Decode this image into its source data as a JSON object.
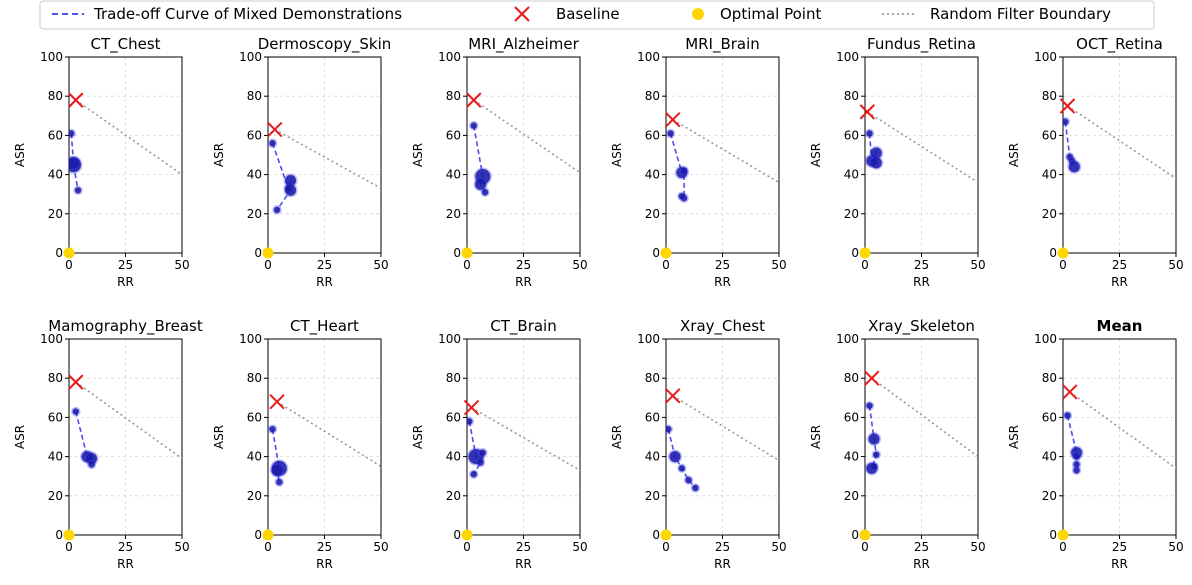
{
  "legend": {
    "curve_label": "Trade-off Curve of Mixed Demonstrations",
    "baseline_label": "Baseline",
    "optimal_label": "Optimal Point",
    "random_label": "Random Filter Boundary"
  },
  "colors": {
    "curve": "#3a3aee",
    "baseline": "#e8191b",
    "optimal": "#ffd700",
    "random": "#999999",
    "grid": "#d8d8d8"
  },
  "chart_data": [
    {
      "type": "scatter",
      "title": "CT_Chest",
      "bold": false,
      "xlabel": "RR",
      "ylabel": "ASR",
      "xlim": [
        0,
        50
      ],
      "ylim": [
        0,
        100
      ],
      "xticks": [
        0,
        25,
        50
      ],
      "yticks": [
        0,
        20,
        40,
        60,
        80,
        100
      ],
      "grid": true,
      "baseline": [
        3,
        78
      ],
      "optimal": [
        0,
        0
      ],
      "random_boundary": [
        [
          3,
          78
        ],
        [
          50,
          40
        ]
      ],
      "trade_off": [
        [
          1,
          61,
          1
        ],
        [
          2,
          46,
          2
        ],
        [
          2,
          45,
          3
        ],
        [
          4,
          32,
          1
        ]
      ]
    },
    {
      "type": "scatter",
      "title": "Dermoscopy_Skin",
      "bold": false,
      "xlabel": "RR",
      "ylabel": "ASR",
      "xlim": [
        0,
        50
      ],
      "ylim": [
        0,
        100
      ],
      "xticks": [
        0,
        25,
        50
      ],
      "yticks": [
        0,
        20,
        40,
        60,
        80,
        100
      ],
      "grid": true,
      "baseline": [
        3,
        63
      ],
      "optimal": [
        0,
        0
      ],
      "random_boundary": [
        [
          3,
          63
        ],
        [
          50,
          33
        ]
      ],
      "trade_off": [
        [
          2,
          56,
          1
        ],
        [
          9,
          33,
          1
        ],
        [
          10,
          37,
          2
        ],
        [
          10,
          32,
          2
        ],
        [
          4,
          22,
          1
        ]
      ]
    },
    {
      "type": "scatter",
      "title": "MRI_Alzheimer",
      "bold": false,
      "xlabel": "RR",
      "ylabel": "ASR",
      "xlim": [
        0,
        50
      ],
      "ylim": [
        0,
        100
      ],
      "xticks": [
        0,
        25,
        50
      ],
      "yticks": [
        0,
        20,
        40,
        60,
        80,
        100
      ],
      "grid": true,
      "baseline": [
        3,
        78
      ],
      "optimal": [
        0,
        0
      ],
      "random_boundary": [
        [
          3,
          78
        ],
        [
          50,
          41
        ]
      ],
      "trade_off": [
        [
          3,
          65,
          1
        ],
        [
          7,
          39,
          3
        ],
        [
          6,
          35,
          2
        ],
        [
          8,
          31,
          1
        ]
      ]
    },
    {
      "type": "scatter",
      "title": "MRI_Brain",
      "bold": false,
      "xlabel": "RR",
      "ylabel": "ASR",
      "xlim": [
        0,
        50
      ],
      "ylim": [
        0,
        100
      ],
      "xticks": [
        0,
        25,
        50
      ],
      "yticks": [
        0,
        20,
        40,
        60,
        80,
        100
      ],
      "grid": true,
      "baseline": [
        3,
        68
      ],
      "optimal": [
        0,
        0
      ],
      "random_boundary": [
        [
          3,
          68
        ],
        [
          50,
          36
        ]
      ],
      "trade_off": [
        [
          2,
          61,
          1
        ],
        [
          7,
          41,
          2
        ],
        [
          8,
          42,
          1
        ],
        [
          8,
          28,
          1
        ],
        [
          7,
          29,
          1
        ]
      ]
    },
    {
      "type": "scatter",
      "title": "Fundus_Retina",
      "bold": false,
      "xlabel": "RR",
      "ylabel": "ASR",
      "xlim": [
        0,
        50
      ],
      "ylim": [
        0,
        100
      ],
      "xticks": [
        0,
        25,
        50
      ],
      "yticks": [
        0,
        20,
        40,
        60,
        80,
        100
      ],
      "grid": true,
      "baseline": [
        1,
        72
      ],
      "optimal": [
        0,
        0
      ],
      "random_boundary": [
        [
          1,
          72
        ],
        [
          50,
          36
        ]
      ],
      "trade_off": [
        [
          2,
          61,
          1
        ],
        [
          3,
          47,
          2
        ],
        [
          5,
          51,
          2
        ],
        [
          5,
          46,
          2
        ]
      ]
    },
    {
      "type": "scatter",
      "title": "OCT_Retina",
      "bold": false,
      "xlabel": "RR",
      "ylabel": "ASR",
      "xlim": [
        0,
        50
      ],
      "ylim": [
        0,
        100
      ],
      "xticks": [
        0,
        25,
        50
      ],
      "yticks": [
        0,
        20,
        40,
        60,
        80,
        100
      ],
      "grid": true,
      "baseline": [
        2,
        75
      ],
      "optimal": [
        0,
        0
      ],
      "random_boundary": [
        [
          2,
          75
        ],
        [
          50,
          38
        ]
      ],
      "trade_off": [
        [
          1,
          67,
          1
        ],
        [
          3,
          49,
          1
        ],
        [
          4,
          47,
          1
        ],
        [
          5,
          44,
          2
        ]
      ]
    },
    {
      "type": "scatter",
      "title": "Mamography_Breast",
      "bold": false,
      "xlabel": "RR",
      "ylabel": "ASR",
      "xlim": [
        0,
        50
      ],
      "ylim": [
        0,
        100
      ],
      "xticks": [
        0,
        25,
        50
      ],
      "yticks": [
        0,
        20,
        40,
        60,
        80,
        100
      ],
      "grid": true,
      "baseline": [
        3,
        78
      ],
      "optimal": [
        0,
        0
      ],
      "random_boundary": [
        [
          3,
          78
        ],
        [
          50,
          39
        ]
      ],
      "trade_off": [
        [
          3,
          63,
          1
        ],
        [
          8,
          40,
          2
        ],
        [
          10,
          39,
          2
        ],
        [
          10,
          36,
          1
        ]
      ]
    },
    {
      "type": "scatter",
      "title": "CT_Heart",
      "bold": false,
      "xlabel": "RR",
      "ylabel": "ASR",
      "xlim": [
        0,
        50
      ],
      "ylim": [
        0,
        100
      ],
      "xticks": [
        0,
        25,
        50
      ],
      "yticks": [
        0,
        20,
        40,
        60,
        80,
        100
      ],
      "grid": true,
      "baseline": [
        4,
        68
      ],
      "optimal": [
        0,
        0
      ],
      "random_boundary": [
        [
          4,
          68
        ],
        [
          50,
          35
        ]
      ],
      "trade_off": [
        [
          2,
          54,
          1
        ],
        [
          5,
          34,
          3
        ],
        [
          4,
          33,
          2
        ],
        [
          5,
          27,
          1
        ]
      ]
    },
    {
      "type": "scatter",
      "title": "CT_Brain",
      "bold": false,
      "xlabel": "RR",
      "ylabel": "ASR",
      "xlim": [
        0,
        50
      ],
      "ylim": [
        0,
        100
      ],
      "xticks": [
        0,
        25,
        50
      ],
      "yticks": [
        0,
        20,
        40,
        60,
        80,
        100
      ],
      "grid": true,
      "baseline": [
        2,
        65
      ],
      "optimal": [
        0,
        0
      ],
      "random_boundary": [
        [
          2,
          65
        ],
        [
          50,
          33
        ]
      ],
      "trade_off": [
        [
          1,
          58,
          1
        ],
        [
          4,
          40,
          3
        ],
        [
          7,
          42,
          1
        ],
        [
          6,
          37,
          1
        ],
        [
          3,
          31,
          1
        ]
      ]
    },
    {
      "type": "scatter",
      "title": "Xray_Chest",
      "bold": false,
      "xlabel": "RR",
      "ylabel": "ASR",
      "xlim": [
        0,
        50
      ],
      "ylim": [
        0,
        100
      ],
      "xticks": [
        0,
        25,
        50
      ],
      "yticks": [
        0,
        20,
        40,
        60,
        80,
        100
      ],
      "grid": true,
      "baseline": [
        3,
        71
      ],
      "optimal": [
        0,
        0
      ],
      "random_boundary": [
        [
          3,
          71
        ],
        [
          50,
          38
        ]
      ],
      "trade_off": [
        [
          1,
          54,
          1
        ],
        [
          4,
          40,
          2
        ],
        [
          7,
          34,
          1
        ],
        [
          10,
          28,
          1
        ],
        [
          13,
          24,
          1
        ]
      ]
    },
    {
      "type": "scatter",
      "title": "Xray_Skeleton",
      "bold": false,
      "xlabel": "RR",
      "ylabel": "ASR",
      "xlim": [
        0,
        50
      ],
      "ylim": [
        0,
        100
      ],
      "xticks": [
        0,
        25,
        50
      ],
      "yticks": [
        0,
        20,
        40,
        60,
        80,
        100
      ],
      "grid": true,
      "baseline": [
        3,
        80
      ],
      "optimal": [
        0,
        0
      ],
      "random_boundary": [
        [
          3,
          80
        ],
        [
          50,
          40
        ]
      ],
      "trade_off": [
        [
          2,
          66,
          1
        ],
        [
          4,
          49,
          2
        ],
        [
          5,
          41,
          1
        ],
        [
          3,
          34,
          2
        ],
        [
          4,
          35,
          1
        ]
      ]
    },
    {
      "type": "scatter",
      "title": "Mean",
      "bold": true,
      "xlabel": "RR",
      "ylabel": "ASR",
      "xlim": [
        0,
        50
      ],
      "ylim": [
        0,
        100
      ],
      "xticks": [
        0,
        25,
        50
      ],
      "yticks": [
        0,
        20,
        40,
        60,
        80,
        100
      ],
      "grid": true,
      "baseline": [
        3,
        73
      ],
      "optimal": [
        0,
        0
      ],
      "random_boundary": [
        [
          3,
          73
        ],
        [
          50,
          34
        ]
      ],
      "trade_off": [
        [
          2,
          61,
          1
        ],
        [
          6,
          42,
          2
        ],
        [
          6,
          40,
          1
        ],
        [
          6,
          36,
          1
        ],
        [
          6,
          33,
          1
        ]
      ]
    }
  ]
}
